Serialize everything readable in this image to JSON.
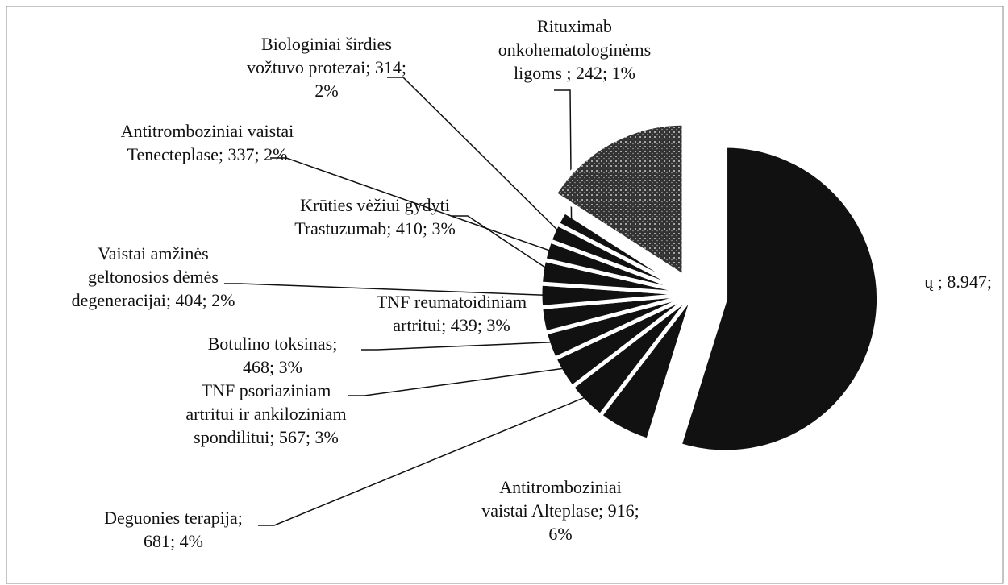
{
  "chart_data": {
    "type": "pie",
    "categories": [
      "ų ; 8.947;",
      "Antitromboziniai vaistai Alteplase; 916; 6%",
      "Deguonies terapija; 681; 4%",
      "TNF psoriaziniam artritui ir ankiloziniam spondilitui; 567; 3%",
      "Botulino toksinas; 468; 3%",
      "TNF reumatoidiniam artritui; 439; 3%",
      "Vaistai amžinės geltonosios dėmės degeneracijai; 404; 2%",
      "Krūties vėžiui gydyti Trastuzumab; 410; 3%",
      "Antitromboziniai vaistai Tenecteplase; 337; 2%",
      "Biologiniai širdies vožtuvo protezai; 314; 2%",
      "Rituximab onkohematologinėms ligoms ; 242; 1%",
      null
    ],
    "values": [
      8947,
      916,
      681,
      567,
      468,
      439,
      404,
      410,
      337,
      314,
      242,
      2600
    ],
    "colors": [
      "#111111",
      "#111111",
      "#111111",
      "#111111",
      "#111111",
      "#111111",
      "#111111",
      "#111111",
      "#111111",
      "#111111",
      "#111111",
      "dotted"
    ]
  }
}
